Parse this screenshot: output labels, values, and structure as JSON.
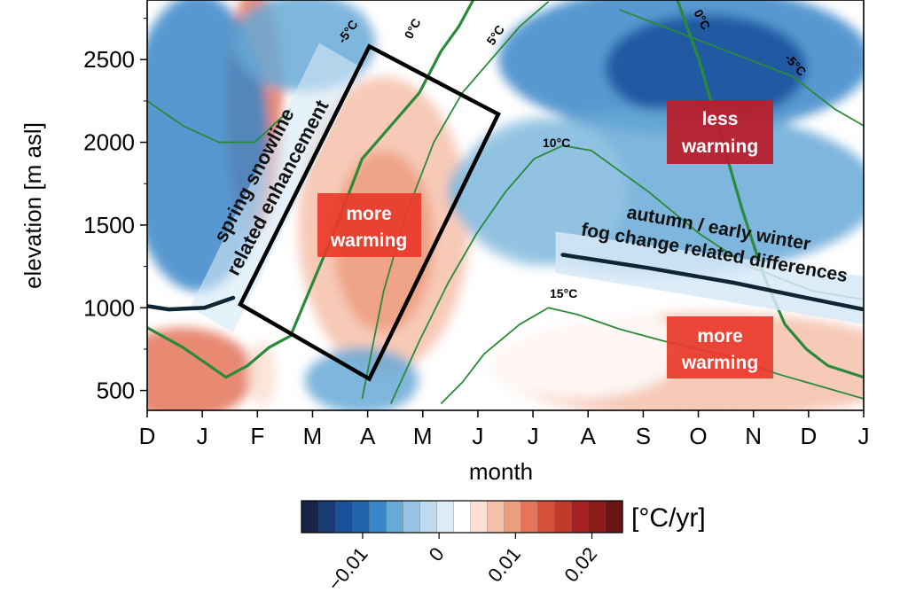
{
  "chart_data": {
    "type": "heatmap",
    "title": "",
    "xlabel": "month",
    "ylabel": "elevation [m asl]",
    "x_ticks": [
      "D",
      "J",
      "F",
      "M",
      "A",
      "M",
      "J",
      "J",
      "A",
      "S",
      "O",
      "N",
      "D",
      "J"
    ],
    "y_ticks": [
      500,
      1000,
      1500,
      2000,
      2500
    ],
    "ylim": [
      380,
      2860
    ],
    "colorbar": {
      "unit": "[°C/yr]",
      "tick_labels": [
        "−0.01",
        "0",
        "0.01",
        "0.02"
      ],
      "tick_values": [
        -0.01,
        0,
        0.01,
        0.02
      ],
      "range": [
        -0.018,
        0.024
      ],
      "colors": [
        "#16244a",
        "#193a73",
        "#1b4f9c",
        "#2166ac",
        "#3a86c8",
        "#67a9d7",
        "#95c5e3",
        "#bedcee",
        "#dcecf6",
        "#ffffff",
        "#fbe0d3",
        "#f6c1aa",
        "#ef9d80",
        "#e4745a",
        "#d6503a",
        "#c0392b",
        "#a62222",
        "#8b1a1a",
        "#6b1414"
      ]
    },
    "isotherms": [
      {
        "label": "-5°C",
        "x": [
          0.0,
          0.05,
          0.1,
          0.15,
          0.2
        ],
        "y": [
          2250,
          2100,
          2000,
          2000,
          2200
        ]
      },
      {
        "label": "0°C",
        "x": [
          0.0,
          0.05,
          0.09,
          0.11,
          0.14,
          0.17,
          0.2,
          0.26,
          0.3,
          0.34,
          0.38,
          0.41,
          0.435,
          0.46
        ],
        "y": [
          880,
          760,
          640,
          580,
          650,
          760,
          830,
          1450,
          1900,
          2100,
          2300,
          2550,
          2700,
          2900
        ]
      },
      {
        "label": "5°C",
        "x": [
          0.3,
          0.33,
          0.36,
          0.4,
          0.44,
          0.48,
          0.52,
          0.56
        ],
        "y": [
          450,
          1100,
          1550,
          2000,
          2300,
          2500,
          2700,
          2850
        ]
      },
      {
        "label": "10°C",
        "x": [
          0.34,
          0.38,
          0.42,
          0.46,
          0.5,
          0.54,
          0.58,
          0.62,
          0.7,
          0.77,
          0.84,
          0.93,
          1.0
        ],
        "y": [
          420,
          800,
          1150,
          1450,
          1700,
          1900,
          1980,
          1950,
          1700,
          1450,
          1250,
          1100,
          1050
        ]
      },
      {
        "label": "15°C",
        "x": [
          0.41,
          0.44,
          0.47,
          0.52,
          0.56,
          0.6,
          0.66,
          0.72,
          0.8,
          0.88,
          1.0
        ],
        "y": [
          420,
          550,
          720,
          900,
          1000,
          960,
          870,
          800,
          720,
          600,
          450
        ]
      },
      {
        "label": "0°C",
        "x": [
          0.74,
          0.77,
          0.8,
          0.83,
          0.86,
          0.89,
          0.92,
          0.95,
          1.0
        ],
        "y": [
          2860,
          2500,
          2050,
          1600,
          1200,
          900,
          750,
          650,
          580
        ]
      },
      {
        "label": "-5°C",
        "x": [
          0.66,
          0.72,
          0.78,
          0.84,
          0.9,
          0.96,
          1.0
        ],
        "y": [
          2800,
          2700,
          2600,
          2500,
          2400,
          2200,
          2100
        ]
      }
    ],
    "patches": [
      {
        "x": 0.34,
        "y": 1600,
        "rx": 0.17,
        "ry": 1150,
        "value": 0.004
      },
      {
        "x": 0.33,
        "y": 1500,
        "rx": 0.12,
        "ry": 900,
        "value": 0.007
      },
      {
        "x": 0.33,
        "y": 1400,
        "rx": 0.07,
        "ry": 550,
        "value": 0.011
      },
      {
        "x": 0.15,
        "y": 2200,
        "rx": 0.04,
        "ry": 750,
        "value": 0.012
      },
      {
        "x": 0.07,
        "y": 2000,
        "rx": 0.1,
        "ry": 900,
        "value": -0.009
      },
      {
        "x": 0.22,
        "y": 2600,
        "rx": 0.1,
        "ry": 300,
        "value": -0.006
      },
      {
        "x": 0.75,
        "y": 2500,
        "rx": 0.26,
        "ry": 450,
        "value": -0.008
      },
      {
        "x": 0.78,
        "y": 2450,
        "rx": 0.14,
        "ry": 320,
        "value": -0.013
      },
      {
        "x": 0.72,
        "y": 1700,
        "rx": 0.3,
        "ry": 500,
        "value": -0.006
      },
      {
        "x": 0.55,
        "y": 1700,
        "rx": 0.12,
        "ry": 450,
        "value": -0.003
      },
      {
        "x": 0.78,
        "y": 650,
        "rx": 0.3,
        "ry": 320,
        "value": 0.008
      },
      {
        "x": 0.6,
        "y": 750,
        "rx": 0.15,
        "ry": 300,
        "value": 0.004
      },
      {
        "x": 0.05,
        "y": 600,
        "rx": 0.1,
        "ry": 280,
        "value": 0.012
      },
      {
        "x": 0.3,
        "y": 560,
        "rx": 0.08,
        "ry": 200,
        "value": -0.007
      },
      {
        "x": 0.16,
        "y": 600,
        "rx": 0.02,
        "ry": 200,
        "value": 0.006
      }
    ],
    "annotations": {
      "spring_snowline": [
        "spring snowline",
        "related enhancement"
      ],
      "autumn_fog": [
        "autumn / early winter",
        "fog change related differences"
      ],
      "more_warming_mid": [
        "more",
        "warming"
      ],
      "less_warming": [
        "less",
        "warming"
      ],
      "more_warming_low": [
        "more",
        "warming"
      ]
    },
    "highlight_box": {
      "x": [
        0.13,
        0.31,
        0.49,
        0.31
      ],
      "y": [
        1020,
        2580,
        2170,
        570
      ]
    },
    "snowline_curve": {
      "x": [
        0.0,
        0.03,
        0.08,
        0.12
      ],
      "y": [
        1010,
        990,
        1000,
        1060
      ]
    },
    "fog_line": {
      "x": [
        0.58,
        0.7,
        0.82,
        0.92,
        1.0
      ],
      "y": [
        1320,
        1240,
        1150,
        1060,
        990
      ]
    }
  }
}
